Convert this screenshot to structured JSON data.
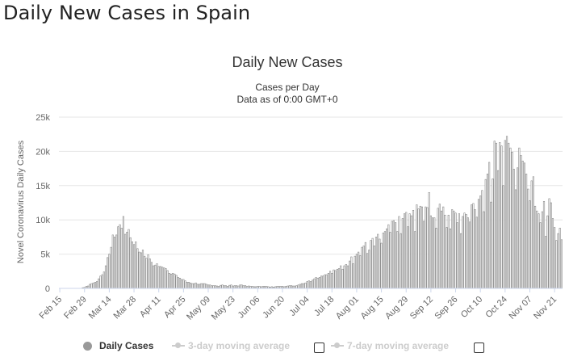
{
  "page_title": "Daily New Cases in Spain",
  "colors": {
    "bars": "#888888",
    "grid": "#e6e6e6",
    "axis_text": "#666666",
    "legend_off": "#cccccc",
    "legend_dot": "#999999"
  },
  "chart_data": {
    "type": "bar",
    "title": "Daily New Cases",
    "subtitle_line1": "Cases per Day",
    "subtitle_line2": "Data as of 0:00 GMT+0",
    "ylabel": "Novel Coronavirus Daily Cases",
    "xlabel": "",
    "ylim": [
      0,
      25000
    ],
    "y_ticks": [
      {
        "value": 0,
        "label": "0"
      },
      {
        "value": 5000,
        "label": "5k"
      },
      {
        "value": 10000,
        "label": "10k"
      },
      {
        "value": 15000,
        "label": "15k"
      },
      {
        "value": 20000,
        "label": "20k"
      },
      {
        "value": 25000,
        "label": "25k"
      }
    ],
    "x_ticks": [
      {
        "index": 0,
        "label": "Feb 15"
      },
      {
        "index": 14,
        "label": "Feb 29"
      },
      {
        "index": 28,
        "label": "Mar 14"
      },
      {
        "index": 42,
        "label": "Mar 28"
      },
      {
        "index": 56,
        "label": "Apr 11"
      },
      {
        "index": 70,
        "label": "Apr 25"
      },
      {
        "index": 84,
        "label": "May 09"
      },
      {
        "index": 98,
        "label": "May 23"
      },
      {
        "index": 112,
        "label": "Jun 06"
      },
      {
        "index": 126,
        "label": "Jun 20"
      },
      {
        "index": 140,
        "label": "Jul 04"
      },
      {
        "index": 154,
        "label": "Jul 18"
      },
      {
        "index": 168,
        "label": "Aug 01"
      },
      {
        "index": 182,
        "label": "Aug 15"
      },
      {
        "index": 196,
        "label": "Aug 29"
      },
      {
        "index": 210,
        "label": "Sep 12"
      },
      {
        "index": 224,
        "label": "Sep 26"
      },
      {
        "index": 238,
        "label": "Oct 10"
      },
      {
        "index": 252,
        "label": "Oct 24"
      },
      {
        "index": 266,
        "label": "Nov 07"
      },
      {
        "index": 280,
        "label": "Nov 21"
      }
    ],
    "start_date": "Feb 15",
    "series": [
      {
        "name": "Daily Cases",
        "values": [
          0,
          0,
          0,
          0,
          0,
          0,
          0,
          0,
          0,
          0,
          0,
          0,
          0,
          100,
          150,
          300,
          350,
          600,
          700,
          800,
          900,
          1000,
          1400,
          1800,
          2000,
          2400,
          3300,
          4500,
          5000,
          6000,
          7800,
          7500,
          7800,
          9000,
          9300,
          8800,
          10500,
          7900,
          8200,
          8600,
          7400,
          6800,
          6400,
          6800,
          5800,
          5300,
          5200,
          5600,
          4700,
          4400,
          4900,
          4300,
          3800,
          3300,
          3400,
          3600,
          3200,
          3200,
          3100,
          3000,
          2900,
          2600,
          2200,
          2100,
          2200,
          2100,
          1900,
          1600,
          1500,
          1300,
          1300,
          1100,
          900,
          900,
          800,
          700,
          700,
          800,
          600,
          600,
          700,
          700,
          700,
          600,
          500,
          500,
          400,
          400,
          400,
          350,
          300,
          450,
          500,
          400,
          400,
          300,
          450,
          500,
          350,
          400,
          400,
          350,
          500,
          500,
          400,
          400,
          300,
          350,
          300,
          300,
          250,
          250,
          300,
          300,
          250,
          300,
          300,
          300,
          250,
          200,
          250,
          200,
          250,
          300,
          300,
          300,
          300,
          250,
          300,
          350,
          400,
          400,
          350,
          350,
          400,
          500,
          600,
          700,
          700,
          800,
          1000,
          1100,
          1000,
          1200,
          1400,
          1600,
          1500,
          1600,
          1800,
          1800,
          2000,
          2000,
          2200,
          2500,
          2200,
          2700,
          2600,
          2800,
          2900,
          3300,
          2800,
          3300,
          3500,
          3300,
          4000,
          4600,
          3600,
          4700,
          5000,
          5300,
          4800,
          6000,
          6200,
          6700,
          5100,
          5600,
          7000,
          7300,
          6200,
          7500,
          7900,
          7200,
          6600,
          8100,
          8300,
          8700,
          9300,
          8200,
          9800,
          9900,
          9600,
          8300,
          10500,
          8000,
          10200,
          10900,
          11100,
          9000,
          10900,
          10600,
          11400,
          8300,
          12200,
          11600,
          12000,
          11900,
          9800,
          11900,
          11800,
          14000,
          10600,
          10300,
          10300,
          8800,
          11700,
          12300,
          11300,
          11900,
          10700,
          8900,
          10700,
          8700,
          11500,
          11300,
          11000,
          9600,
          10900,
          8000,
          10500,
          11000,
          10800,
          10300,
          9700,
          12200,
          12400,
          11500,
          10400,
          13000,
          13500,
          14300,
          11200,
          15900,
          16700,
          18400,
          12600,
          16000,
          21500,
          21200,
          17200,
          21300,
          20800,
          15000,
          21600,
          22200,
          21200,
          20500,
          19900,
          17400,
          14400,
          17600,
          20500,
          19400,
          18600,
          18300,
          16700,
          14500,
          12800,
          15700,
          16300,
          12000,
          11300,
          10900,
          9600,
          11200,
          12700,
          7600,
          10600,
          13100,
          12500,
          10200,
          8900,
          7000,
          8000,
          8800,
          7100
        ]
      }
    ]
  },
  "legend": {
    "daily_cases": "Daily Cases",
    "ma3": "3-day moving average",
    "ma7": "7-day moving average"
  }
}
